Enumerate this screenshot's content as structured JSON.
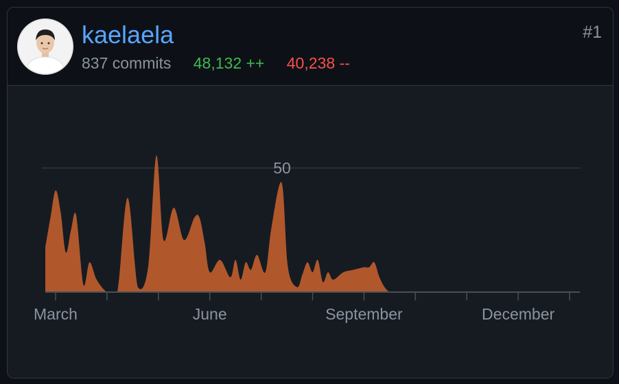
{
  "user": {
    "username": "kaelaela",
    "commits_text": "837 commits",
    "additions_text": "48,132 ++",
    "deletions_text": "40,238 --",
    "rank": "#1",
    "avatar_icon": "user-avatar"
  },
  "colors": {
    "link": "#58a6ff",
    "muted": "#8b949e",
    "additions": "#3fb950",
    "deletions": "#f85149",
    "area_fill": "#b0582c"
  },
  "chart_data": {
    "type": "area",
    "title": "",
    "xlabel": "",
    "ylabel": "",
    "ylim": [
      0,
      50
    ],
    "gridlines": [
      50
    ],
    "grid_labels": [
      "50"
    ],
    "month_labels": [
      "March",
      "June",
      "September",
      "December"
    ],
    "x_range": [
      0,
      52
    ],
    "x_ticks": [
      1,
      6,
      11,
      16,
      21,
      26,
      31,
      36,
      41,
      46,
      51
    ],
    "labeled_tick_positions": [
      1,
      16,
      31,
      46
    ],
    "series": [
      {
        "x": [
          0,
          0.5,
          1.0,
          1.5,
          2.0,
          2.5,
          3.0,
          3.7,
          4.3,
          5.0,
          6.0,
          7.0,
          8.0,
          9.0,
          10.0,
          10.8,
          11.5,
          12.5,
          13.5,
          14.5,
          15.0,
          15.5,
          16.0,
          17.0,
          18.0,
          18.5,
          19.0,
          19.5,
          20.0,
          20.6,
          21.4,
          22.0,
          23.0,
          23.6,
          24.5,
          25.0,
          25.5,
          26.0,
          26.5,
          27.0,
          27.5,
          28.0,
          29.0,
          30.0,
          31.0,
          31.5,
          32.0,
          32.5,
          33.0,
          33.5,
          34.0,
          35.0,
          36.0,
          36.5,
          37.0,
          38.0,
          39.0,
          40.0,
          41.0,
          42.0,
          43.0,
          44.0,
          45.0,
          46.0,
          47.0,
          48.0,
          49.0,
          50.0,
          51.0,
          52.0
        ],
        "values": [
          18,
          30,
          41,
          32,
          16,
          25,
          31,
          3,
          12,
          5,
          0,
          0,
          38,
          2,
          10,
          55,
          21,
          34,
          21,
          30,
          30,
          20,
          8,
          13,
          6,
          13,
          5,
          12,
          9,
          15,
          8,
          26,
          44,
          10,
          2,
          7,
          12,
          8,
          13,
          4,
          8,
          5,
          8,
          9,
          10,
          10,
          12,
          6,
          2,
          0,
          0,
          0,
          0,
          0,
          0,
          0,
          0,
          0,
          0,
          0,
          0,
          0,
          0,
          0,
          0,
          0,
          0,
          0,
          0,
          0
        ]
      }
    ]
  }
}
